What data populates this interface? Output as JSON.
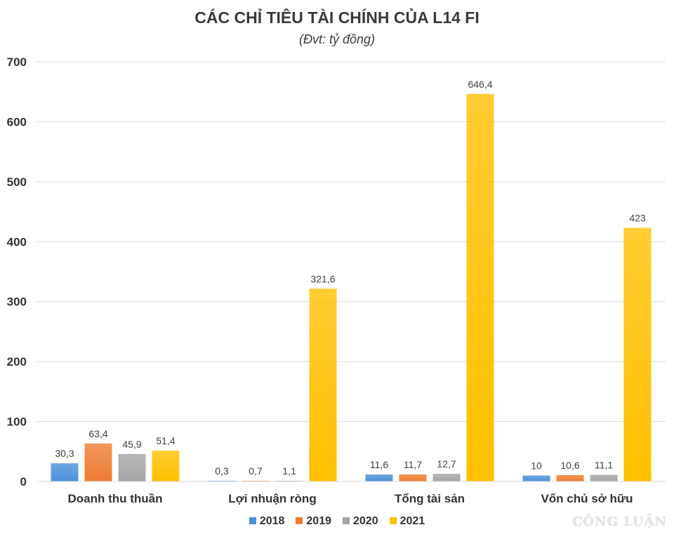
{
  "chart_data": {
    "type": "bar",
    "title": "CÁC CHỈ TIÊU TÀI CHÍNH CỦA L14 FI",
    "subtitle": "(Đvt: tỷ đồng)",
    "categories": [
      "Doanh thu thuần",
      "Lợi nhuận ròng",
      "Tổng tài sản",
      "Vốn chủ sở hữu"
    ],
    "series": [
      {
        "name": "2018",
        "color": "#4a90d9",
        "values": [
          30.3,
          0.3,
          11.6,
          10
        ],
        "labels": [
          "30,3",
          "0,3",
          "11,6",
          "10"
        ]
      },
      {
        "name": "2019",
        "color": "#ed7d31",
        "values": [
          63.4,
          0.7,
          11.7,
          10.6
        ],
        "labels": [
          "63,4",
          "0,7",
          "11,7",
          "10,6"
        ]
      },
      {
        "name": "2020",
        "color": "#a5a5a5",
        "values": [
          45.9,
          1.1,
          12.7,
          11.1
        ],
        "labels": [
          "45,9",
          "1,1",
          "12,7",
          "11,1"
        ]
      },
      {
        "name": "2021",
        "color": "#ffc000",
        "values": [
          51.4,
          321.6,
          646.4,
          423
        ],
        "labels": [
          "51,4",
          "321,6",
          "646,4",
          "423"
        ]
      }
    ],
    "ylim": [
      0,
      700
    ],
    "yticks": [
      0,
      100,
      200,
      300,
      400,
      500,
      600,
      700
    ],
    "grid": true,
    "legend_position": "bottom"
  },
  "watermark": "CÔNG LUẬN"
}
